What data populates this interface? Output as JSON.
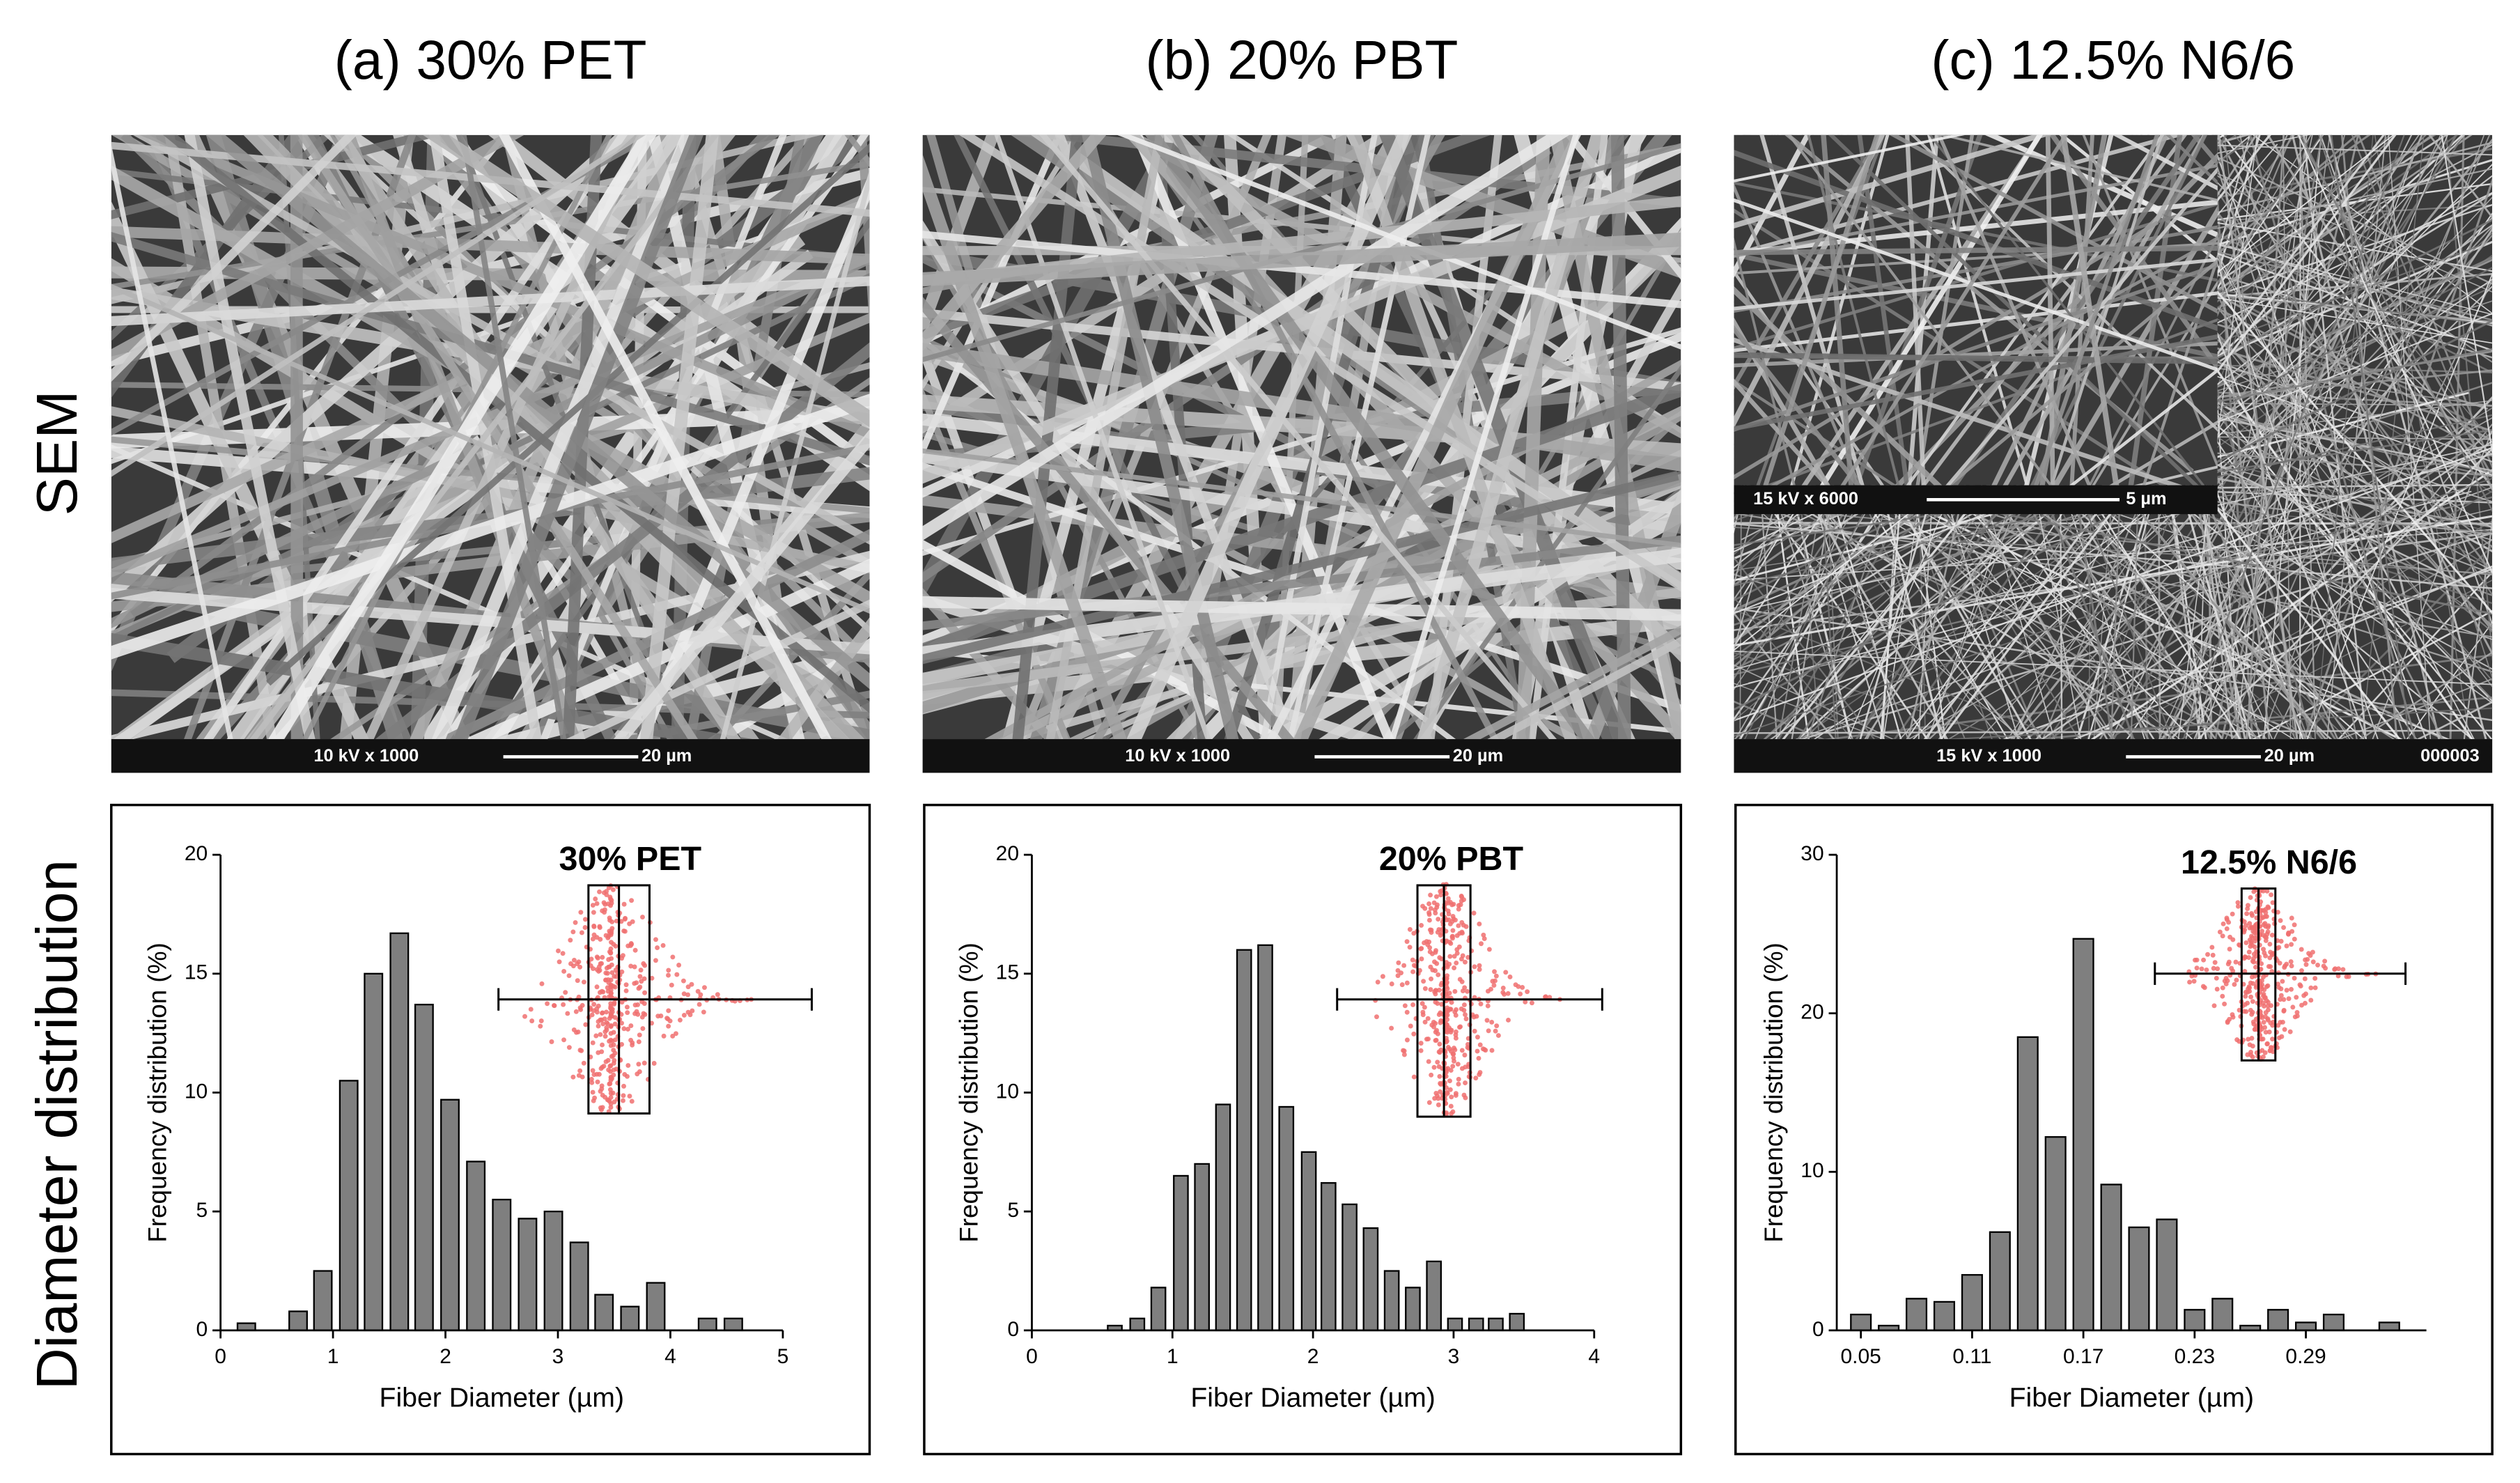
{
  "figure": {
    "panels": [
      {
        "title": "(a) 30% PET",
        "sem_caption": "10 kV  x 1000",
        "scale_bar": "20 µm"
      },
      {
        "title": "(b) 20% PBT",
        "sem_caption": "10 kV  x 1000",
        "scale_bar": "20 µm"
      },
      {
        "title": "(c) 12.5% N6/6",
        "sem_caption": "15 kV  x 1000",
        "scale_bar": "20 µm",
        "image_id": "000003",
        "inset_caption": "15 kV  x 6000",
        "inset_scale_bar": "5 µm"
      }
    ],
    "row_labels": [
      "SEM",
      "Diameter distribution"
    ]
  },
  "chart_data": [
    {
      "type": "bar",
      "annotation": "30%  PET",
      "xlabel": "Fiber Diameter (µm)",
      "ylabel": "Frequency distribution (%)",
      "color": "#7f7f7f",
      "x": [
        0.23,
        0.69,
        0.91,
        1.14,
        1.36,
        1.59,
        1.81,
        2.04,
        2.27,
        2.5,
        2.73,
        2.96,
        3.19,
        3.41,
        3.64,
        3.87,
        4.33,
        4.56
      ],
      "values": [
        0.3,
        0.8,
        2.5,
        10.5,
        15,
        16.7,
        13.7,
        9.7,
        7.1,
        5.5,
        4.7,
        5.0,
        3.7,
        1.5,
        1.0,
        2.0,
        0.5,
        0.5
      ],
      "xlim": [
        0,
        5
      ],
      "ylim": [
        0,
        20
      ],
      "xticks": [
        0,
        1,
        2,
        3,
        4,
        5
      ],
      "yticks": [
        0,
        5,
        10,
        15,
        20
      ]
    },
    {
      "type": "bar",
      "annotation": "20% PBT",
      "xlabel": "Fiber Diameter (µm)",
      "ylabel": "Frequency distribution (%)",
      "color": "#7f7f7f",
      "x": [
        0.59,
        0.75,
        0.9,
        1.06,
        1.21,
        1.36,
        1.51,
        1.66,
        1.81,
        1.97,
        2.11,
        2.26,
        2.41,
        2.56,
        2.71,
        2.86,
        3.01,
        3.16,
        3.3,
        3.45
      ],
      "values": [
        0.2,
        0.5,
        1.8,
        6.5,
        7.0,
        9.5,
        16.0,
        16.2,
        9.4,
        7.5,
        6.2,
        5.3,
        4.3,
        2.5,
        1.8,
        2.9,
        0.5,
        0.5,
        0.5,
        0.7
      ],
      "xlim": [
        0,
        4
      ],
      "ylim": [
        0,
        20
      ],
      "xticks": [
        0,
        1,
        2,
        3,
        4
      ],
      "yticks": [
        0,
        5,
        10,
        15,
        20
      ]
    },
    {
      "type": "bar",
      "annotation": "12.5% N6/6",
      "xlabel": "Fiber Diameter (µm)",
      "ylabel": "Frequency distribution (%)",
      "color": "#7f7f7f",
      "x": [
        0.05,
        0.065,
        0.08,
        0.095,
        0.11,
        0.125,
        0.14,
        0.155,
        0.17,
        0.185,
        0.2,
        0.215,
        0.23,
        0.245,
        0.26,
        0.275,
        0.29,
        0.305,
        0.335
      ],
      "values": [
        1.0,
        0.3,
        2.0,
        1.8,
        3.5,
        6.2,
        18.5,
        12.2,
        24.7,
        9.2,
        6.5,
        7.0,
        1.3,
        2.0,
        0.3,
        1.3,
        0.5,
        1.0,
        0.5
      ],
      "xlim": [
        0.037,
        0.355
      ],
      "ylim": [
        0,
        30
      ],
      "xticks": [
        0.05,
        0.11,
        0.17,
        0.23,
        0.29
      ],
      "yticks": [
        0,
        10,
        20,
        30
      ]
    }
  ]
}
